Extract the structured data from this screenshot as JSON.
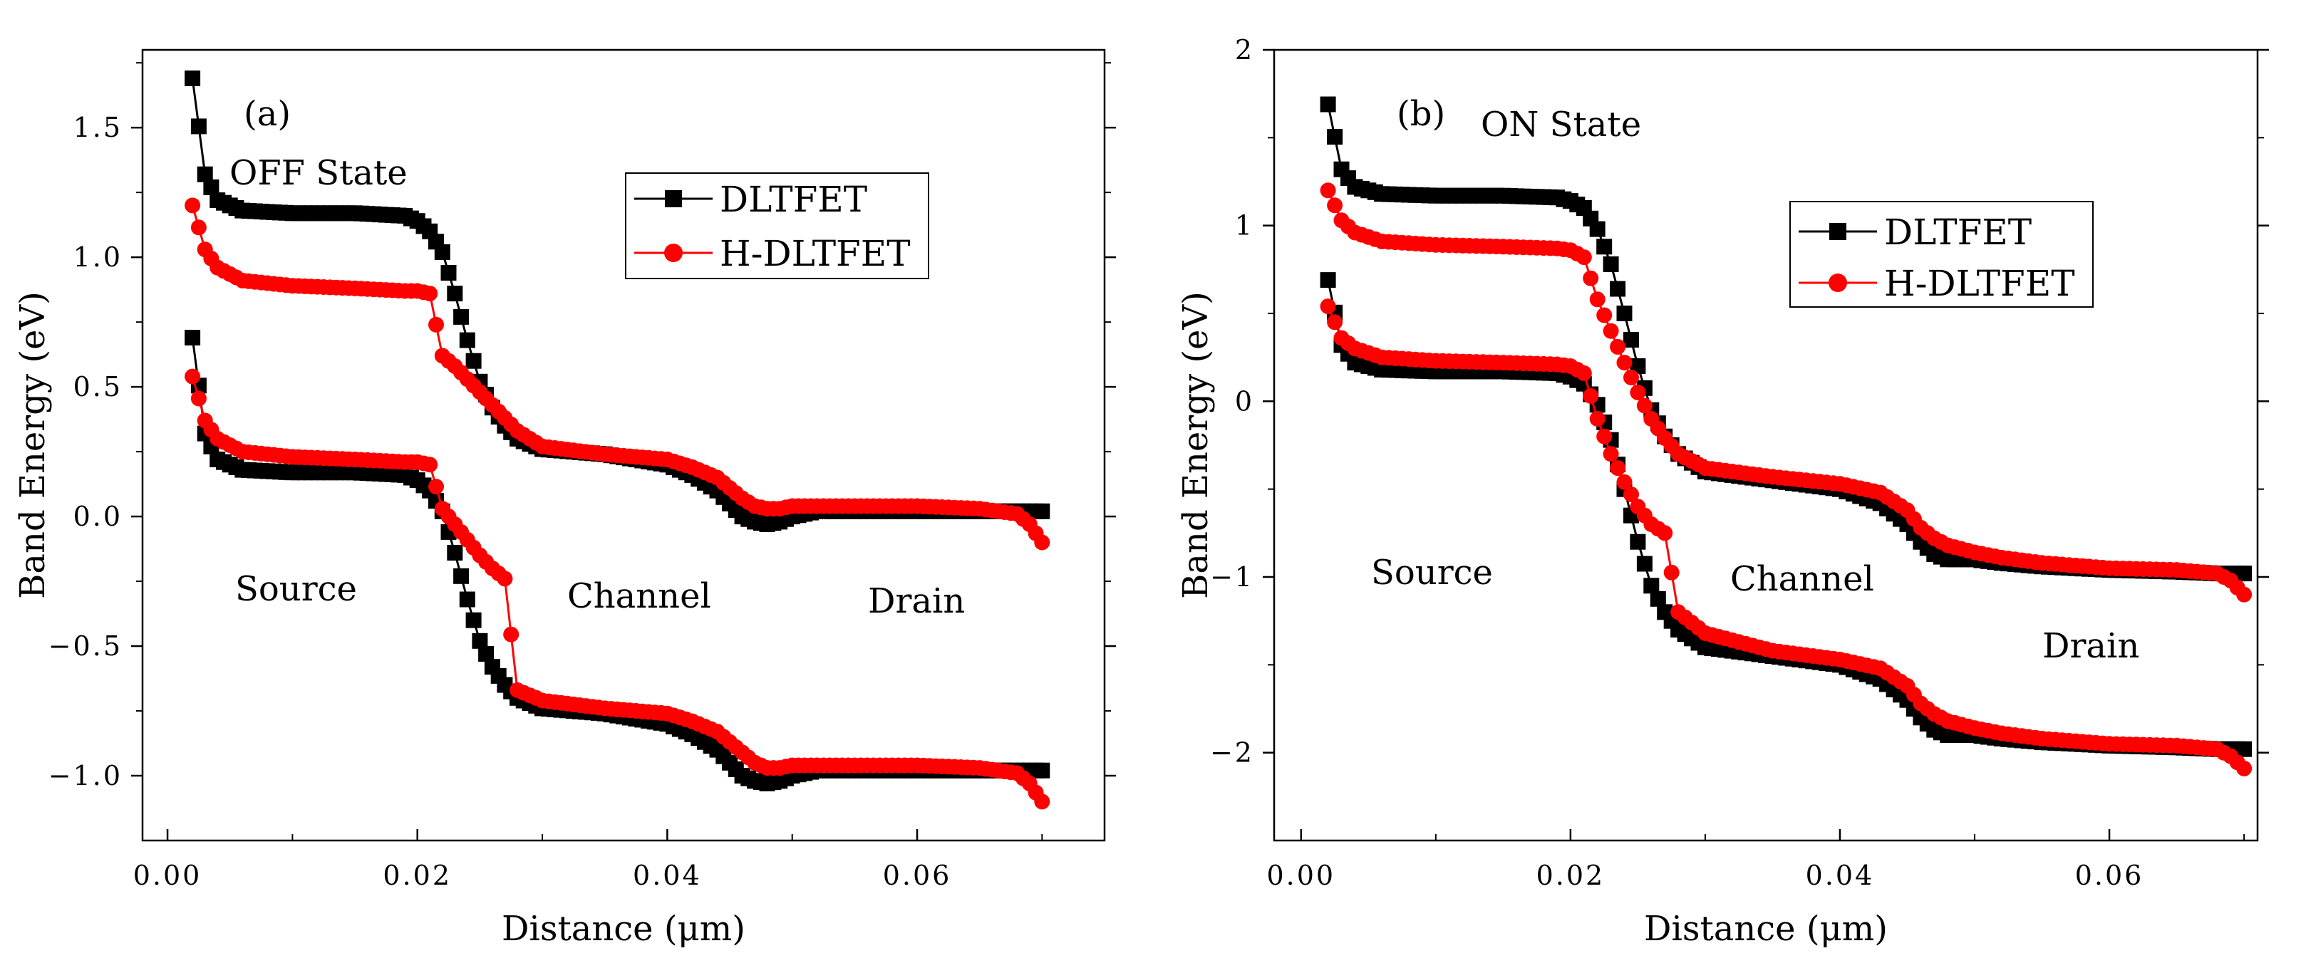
{
  "figure": {
    "colors": {
      "dltfet": "#000000",
      "hdltfet": "#ff0000",
      "axis": "#000000",
      "background": "#ffffff"
    }
  },
  "chart_data": [
    {
      "type": "line",
      "panel_label": "(a)",
      "state_label": "OFF State",
      "xlabel": "Distance (μm)",
      "ylabel": "Band Energy (eV)",
      "xlim": [
        -0.002,
        0.075
      ],
      "ylim": [
        -1.25,
        1.8
      ],
      "xticks": [
        0.0,
        0.02,
        0.04,
        0.06
      ],
      "xtick_labels": [
        "0.00",
        "0.02",
        "0.04",
        "0.06"
      ],
      "yticks": [
        -1.0,
        -0.5,
        0.0,
        0.5,
        1.0,
        1.5
      ],
      "ytick_labels": [
        "−1.0",
        "−0.5",
        "0.0",
        "0.5",
        "1.0",
        "1.5"
      ],
      "legend": {
        "position": "upper-right",
        "entries": [
          "DLTFET",
          "H-DLTFET"
        ]
      },
      "region_labels": [
        "Source",
        "Channel",
        "Drain"
      ],
      "x": [
        0.002,
        0.003,
        0.004,
        0.006,
        0.01,
        0.015,
        0.019,
        0.02,
        0.021,
        0.022,
        0.023,
        0.024,
        0.025,
        0.026,
        0.027,
        0.028,
        0.03,
        0.035,
        0.04,
        0.042,
        0.044,
        0.045,
        0.046,
        0.047,
        0.048,
        0.049,
        0.05,
        0.052,
        0.055,
        0.06,
        0.065,
        0.068,
        0.069,
        0.07
      ],
      "series": [
        {
          "name": "DLTFET",
          "band": "conduction",
          "values": [
            1.69,
            1.32,
            1.22,
            1.18,
            1.17,
            1.17,
            1.16,
            1.14,
            1.1,
            1.02,
            0.86,
            0.68,
            0.52,
            0.42,
            0.35,
            0.3,
            0.26,
            0.24,
            0.2,
            0.16,
            0.1,
            0.05,
            0.0,
            -0.02,
            -0.03,
            -0.02,
            0.0,
            0.02,
            0.02,
            0.02,
            0.02,
            0.02,
            0.02,
            0.02
          ]
        },
        {
          "name": "DLTFET",
          "band": "valence",
          "values": [
            0.69,
            0.32,
            0.22,
            0.18,
            0.17,
            0.17,
            0.16,
            0.14,
            0.1,
            0.02,
            -0.14,
            -0.32,
            -0.48,
            -0.58,
            -0.65,
            -0.7,
            -0.74,
            -0.76,
            -0.8,
            -0.84,
            -0.9,
            -0.95,
            -1.0,
            -1.02,
            -1.03,
            -1.02,
            -1.0,
            -0.98,
            -0.98,
            -0.98,
            -0.98,
            -0.98,
            -0.98,
            -0.98
          ]
        },
        {
          "name": "H-DLTFET",
          "band": "conduction",
          "values": [
            1.2,
            1.03,
            0.96,
            0.91,
            0.89,
            0.88,
            0.87,
            0.87,
            0.86,
            0.62,
            0.58,
            0.53,
            0.48,
            0.43,
            0.38,
            0.33,
            0.27,
            0.24,
            0.22,
            0.19,
            0.15,
            0.11,
            0.07,
            0.04,
            0.03,
            0.03,
            0.04,
            0.04,
            0.04,
            0.04,
            0.03,
            0.01,
            -0.03,
            -0.1
          ]
        },
        {
          "name": "H-DLTFET",
          "band": "valence",
          "values": [
            0.54,
            0.37,
            0.3,
            0.25,
            0.23,
            0.22,
            0.21,
            0.21,
            0.2,
            0.03,
            -0.03,
            -0.09,
            -0.15,
            -0.2,
            -0.24,
            -0.67,
            -0.71,
            -0.74,
            -0.76,
            -0.79,
            -0.83,
            -0.87,
            -0.91,
            -0.95,
            -0.97,
            -0.97,
            -0.96,
            -0.96,
            -0.96,
            -0.96,
            -0.97,
            -0.99,
            -1.03,
            -1.1
          ]
        }
      ]
    },
    {
      "type": "line",
      "panel_label": "(b)",
      "state_label": "ON State",
      "xlabel": "Distance (μm)",
      "ylabel": "Band Energy (eV)",
      "xlim": [
        -0.002,
        0.071
      ],
      "ylim": [
        -2.5,
        2.0
      ],
      "xticks": [
        0.0,
        0.02,
        0.04,
        0.06
      ],
      "xtick_labels": [
        "0.00",
        "0.02",
        "0.04",
        "0.06"
      ],
      "yticks": [
        -2,
        -1,
        0,
        1,
        2
      ],
      "ytick_labels": [
        "−2",
        "−1",
        "0",
        "1",
        "2"
      ],
      "legend": {
        "position": "upper-right",
        "entries": [
          "DLTFET",
          "H-DLTFET"
        ]
      },
      "region_labels": [
        "Source",
        "Channel",
        "Drain"
      ],
      "x": [
        0.002,
        0.003,
        0.004,
        0.006,
        0.01,
        0.015,
        0.019,
        0.02,
        0.021,
        0.022,
        0.023,
        0.024,
        0.025,
        0.026,
        0.027,
        0.028,
        0.03,
        0.035,
        0.04,
        0.043,
        0.045,
        0.046,
        0.047,
        0.048,
        0.05,
        0.052,
        0.055,
        0.06,
        0.065,
        0.068,
        0.069,
        0.07
      ],
      "series": [
        {
          "name": "DLTFET",
          "band": "conduction",
          "values": [
            1.69,
            1.32,
            1.22,
            1.18,
            1.17,
            1.17,
            1.16,
            1.14,
            1.1,
            0.98,
            0.78,
            0.5,
            0.2,
            -0.05,
            -0.2,
            -0.3,
            -0.4,
            -0.45,
            -0.5,
            -0.58,
            -0.7,
            -0.8,
            -0.87,
            -0.9,
            -0.9,
            -0.92,
            -0.94,
            -0.96,
            -0.97,
            -0.98,
            -0.98,
            -0.98
          ]
        },
        {
          "name": "DLTFET",
          "band": "valence",
          "values": [
            0.69,
            0.32,
            0.22,
            0.18,
            0.17,
            0.17,
            0.16,
            0.14,
            0.1,
            -0.02,
            -0.22,
            -0.5,
            -0.8,
            -1.05,
            -1.2,
            -1.3,
            -1.4,
            -1.45,
            -1.5,
            -1.58,
            -1.7,
            -1.8,
            -1.87,
            -1.9,
            -1.9,
            -1.92,
            -1.94,
            -1.96,
            -1.97,
            -1.98,
            -1.98,
            -1.98
          ]
        },
        {
          "name": "H-DLTFET",
          "band": "conduction",
          "values": [
            1.2,
            1.03,
            0.96,
            0.91,
            0.89,
            0.88,
            0.87,
            0.86,
            0.82,
            0.58,
            0.4,
            0.22,
            0.05,
            -0.1,
            -0.21,
            -0.3,
            -0.38,
            -0.43,
            -0.47,
            -0.52,
            -0.62,
            -0.72,
            -0.78,
            -0.82,
            -0.86,
            -0.89,
            -0.92,
            -0.95,
            -0.96,
            -0.98,
            -1.02,
            -1.1
          ]
        },
        {
          "name": "H-DLTFET",
          "band": "valence",
          "values": [
            0.54,
            0.36,
            0.3,
            0.25,
            0.23,
            0.22,
            0.21,
            0.2,
            0.16,
            -0.1,
            -0.3,
            -0.46,
            -0.6,
            -0.7,
            -0.75,
            -1.2,
            -1.32,
            -1.42,
            -1.47,
            -1.52,
            -1.62,
            -1.72,
            -1.78,
            -1.82,
            -1.86,
            -1.89,
            -1.92,
            -1.95,
            -1.96,
            -1.98,
            -2.02,
            -2.09
          ]
        }
      ]
    }
  ]
}
